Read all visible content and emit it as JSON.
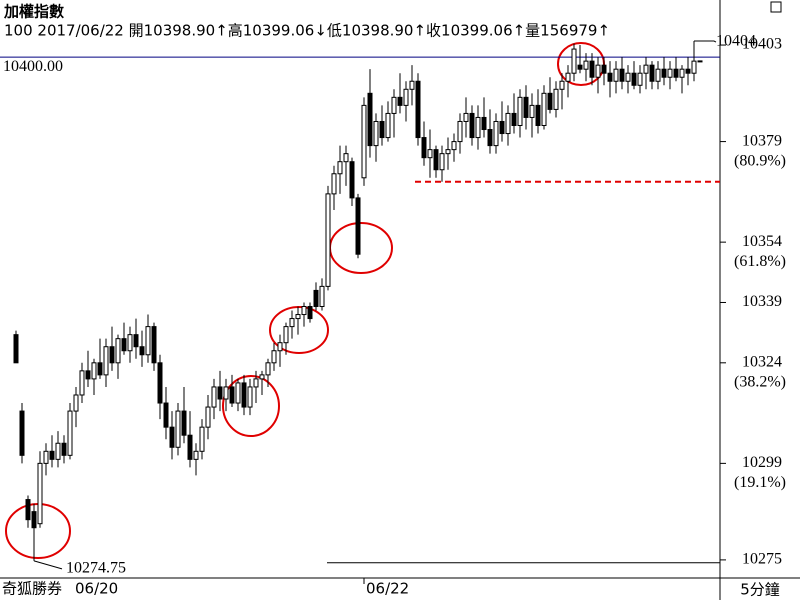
{
  "chart_data": {
    "type": "candlestick",
    "title": "加權指數",
    "info": "100 2017/06/22 開10398.90↑高10399.06↓低10398.90↑收10399.06↑量156979↑",
    "brand": "奇狐勝券",
    "start_date": "06/20",
    "period": "5分鐘",
    "last_price": {
      "value": 10400,
      "label": "10400.00",
      "color": "#000080"
    },
    "ylim": [
      10270.5,
      10414.2
    ],
    "yticks": [
      10275,
      10299,
      10324,
      10339,
      10354,
      10379,
      10403
    ],
    "fib_levels": [
      {
        "value": 10299,
        "label": "(19.1%)"
      },
      {
        "value": 10324,
        "label": "(38.2%)"
      },
      {
        "value": 10354,
        "label": "(61.8%)"
      },
      {
        "value": 10379,
        "label": "(80.9%)"
      }
    ],
    "lines": [
      {
        "value": 10369,
        "color": "#e00000",
        "dashed": true
      },
      {
        "value": 10274.3,
        "color": "#000000",
        "dashed": false
      }
    ],
    "categories": [
      null,
      null,
      null,
      null,
      null,
      null,
      null,
      null,
      null,
      null,
      null,
      null,
      null,
      null,
      null,
      null,
      null,
      null,
      null,
      null,
      null,
      null,
      null,
      null,
      null,
      null,
      null,
      null,
      null,
      null,
      null,
      null,
      null,
      null,
      null,
      null,
      null,
      null,
      null,
      null,
      null,
      null,
      null,
      null,
      null,
      null,
      null,
      null,
      null,
      null,
      null,
      null,
      null,
      null,
      null,
      null,
      null,
      null,
      "06/22",
      null,
      null,
      null,
      null,
      null,
      null,
      null,
      null,
      null,
      null,
      null,
      null,
      null,
      null,
      null,
      null,
      null,
      null,
      null,
      null,
      null,
      null,
      null,
      null,
      null,
      null,
      null,
      null,
      null,
      null,
      null,
      null,
      null,
      null,
      null,
      null,
      null,
      null,
      null,
      null,
      null,
      null,
      null,
      null,
      null,
      null,
      null,
      null,
      null,
      null,
      null,
      null,
      null,
      null,
      null,
      null
    ],
    "open": [
      10331,
      10312,
      10290,
      10287,
      10284,
      10299,
      10302,
      10300,
      10304,
      10301,
      10312,
      10316,
      10322,
      10320,
      10324,
      10321,
      10328,
      10324,
      10330,
      10327,
      10331,
      10328,
      10326,
      10333,
      10324,
      10314,
      10308,
      10303,
      10312,
      10306,
      10300,
      10302,
      10308,
      10313,
      10318,
      10315,
      10318,
      10314,
      10319,
      10313,
      10318,
      10320,
      10321,
      10324,
      10327,
      10329,
      10333,
      10335,
      10336,
      10338,
      10342,
      10338,
      10343,
      10366,
      10371,
      10374,
      10374,
      10365,
      10370,
      10391,
      10378,
      10384,
      10380,
      10386,
      10390,
      10388,
      10392,
      10394,
      10380,
      10375,
      10377,
      10372,
      10376,
      10377,
      10379,
      10384,
      10386,
      10380,
      10385,
      10382,
      10378,
      10384,
      10381,
      10386,
      10383,
      10390,
      10385,
      10388,
      10383,
      10391,
      10387,
      10392,
      10394,
      10396,
      10398,
      10397,
      10399,
      10395,
      10398,
      10396,
      10394,
      10397,
      10394,
      10396,
      10393,
      10396,
      10398,
      10394,
      10397,
      10395,
      10397,
      10395,
      10397,
      10396,
      10398.9
    ],
    "high": [
      10332,
      10314,
      10291,
      10289,
      10302,
      10304,
      10306,
      10307,
      10306,
      10314,
      10318,
      10324,
      10327,
      10325,
      10330,
      10330,
      10333,
      10331,
      10334,
      10333,
      10335,
      10332,
      10336,
      10334,
      10326,
      10318,
      10312,
      10314,
      10318,
      10312,
      10304,
      10310,
      10316,
      10320,
      10322,
      10320,
      10321,
      10320,
      10321,
      10320,
      10322,
      10322,
      10325,
      10329,
      10331,
      10334,
      10337,
      10338,
      10339,
      10339,
      10344,
      10345,
      10368,
      10373,
      10378,
      10378,
      10375,
      10366,
      10390,
      10397,
      10386,
      10388,
      10389,
      10392,
      10396,
      10394,
      10398,
      10396,
      10384,
      10382,
      10378,
      10378,
      10380,
      10381,
      10386,
      10390,
      10388,
      10388,
      10390,
      10387,
      10386,
      10389,
      10388,
      10391,
      10392,
      10393,
      10391,
      10392,
      10393,
      10395,
      10394,
      10396,
      10398,
      10403.36,
      10403,
      10401,
      10401,
      10400,
      10400,
      10399,
      10399,
      10400,
      10398,
      10399,
      10398,
      10400,
      10399,
      10399,
      10400,
      10399,
      10400,
      10398,
      10400,
      10404,
      10399.06
    ],
    "low": [
      10324,
      10299,
      10283,
      10274.75,
      10283,
      10296,
      10298,
      10298,
      10299,
      10300,
      10308,
      10314,
      10318,
      10316,
      10320,
      10318,
      10322,
      10320,
      10326,
      10324,
      10325,
      10323,
      10324,
      10322,
      10310,
      10305,
      10300,
      10301,
      10304,
      10298,
      10296,
      10300,
      10305,
      10310,
      10312,
      10312,
      10313,
      10312,
      10311,
      10311,
      10314,
      10316,
      10318,
      10322,
      10323,
      10326,
      10330,
      10331,
      10333,
      10334,
      10337,
      10337,
      10342,
      10362,
      10366,
      10368,
      10363,
      10350,
      10368,
      10375,
      10374,
      10378,
      10379,
      10380,
      10386,
      10384,
      10388,
      10378,
      10373,
      10370,
      10370,
      10369,
      10372,
      10374,
      10376,
      10380,
      10378,
      10377,
      10380,
      10376,
      10376,
      10379,
      10378,
      10381,
      10380,
      10382,
      10380,
      10381,
      10382,
      10386,
      10385,
      10387,
      10390,
      10394,
      10396,
      10394,
      10393,
      10391,
      10393,
      10390,
      10391,
      10392,
      10391,
      10392,
      10391,
      10392,
      10392,
      10392,
      10393,
      10392,
      10394,
      10391,
      10393,
      10394,
      10398.9
    ],
    "close": [
      10324,
      10301,
      10285,
      10283,
      10299,
      10302,
      10300,
      10304,
      10301,
      10312,
      10316,
      10322,
      10320,
      10324,
      10321,
      10328,
      10324,
      10330,
      10327,
      10331,
      10328,
      10326,
      10333,
      10324,
      10314,
      10308,
      10303,
      10312,
      10306,
      10300,
      10302,
      10308,
      10313,
      10318,
      10315,
      10318,
      10314,
      10319,
      10313,
      10318,
      10320,
      10321,
      10324,
      10327,
      10329,
      10333,
      10335,
      10336,
      10338,
      10335,
      10338,
      10343,
      10366,
      10371,
      10374,
      10376,
      10365,
      10351,
      10388,
      10378,
      10384,
      10380,
      10386,
      10390,
      10388,
      10392,
      10394,
      10380,
      10375,
      10377,
      10372,
      10376,
      10377,
      10379,
      10384,
      10386,
      10380,
      10385,
      10382,
      10378,
      10384,
      10381,
      10386,
      10383,
      10390,
      10385,
      10388,
      10383,
      10391,
      10387,
      10392,
      10394,
      10396,
      10402,
      10397,
      10399,
      10395,
      10398,
      10396,
      10394,
      10397,
      10394,
      10396,
      10393,
      10396,
      10398,
      10394,
      10397,
      10395,
      10397,
      10395,
      10397,
      10396,
      10399,
      10399.06
    ]
  }
}
